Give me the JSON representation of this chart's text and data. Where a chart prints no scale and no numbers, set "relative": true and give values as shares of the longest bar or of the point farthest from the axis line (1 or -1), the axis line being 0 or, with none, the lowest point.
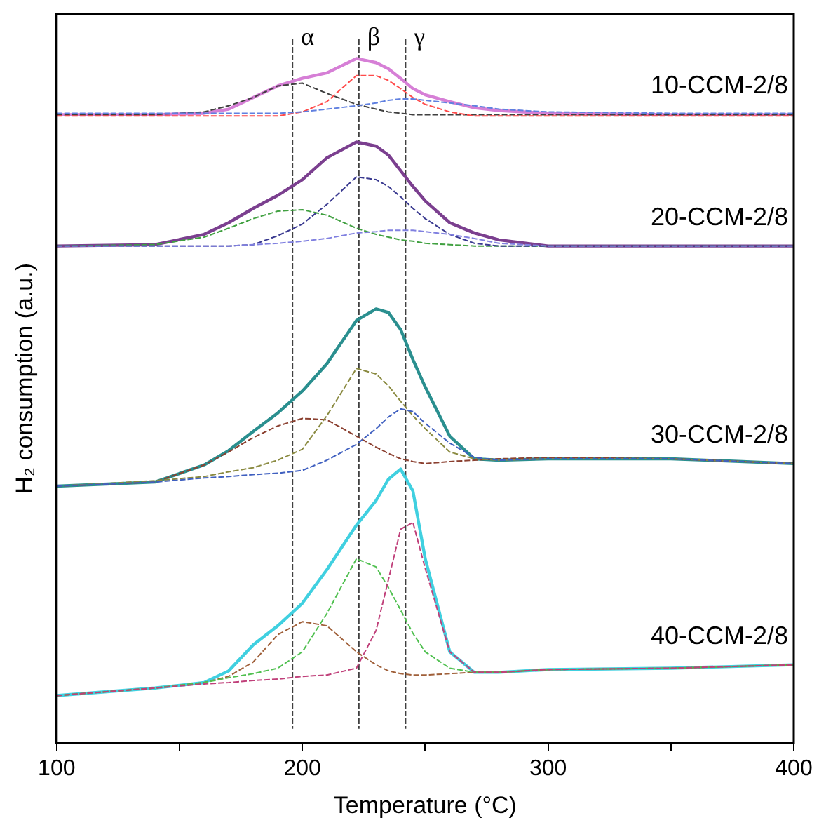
{
  "chart_data": {
    "type": "line",
    "relative": true,
    "xlabel": "Temperature (°C)",
    "ylabel": "H₂ consumption (a.u.)",
    "xlim": [
      100,
      400
    ],
    "xticks": [
      100,
      {
        "value": 150,
        "label": null
      },
      200,
      {
        "value": 250,
        "label": null
      },
      300,
      {
        "value": 350,
        "label": null
      },
      400
    ],
    "marker": "none",
    "x": [
      100,
      140,
      160,
      170,
      180,
      190,
      200,
      210,
      222,
      230,
      235,
      240,
      245,
      250,
      260,
      270,
      280,
      300,
      350,
      400
    ],
    "series": [
      {
        "name": "10-CCM-2/8",
        "color": "#d67fd6",
        "line_style": "solid",
        "values": [
          0.918,
          0.918,
          0.92,
          0.926,
          0.943,
          0.96,
          0.971,
          0.979,
          1.0,
          0.994,
          0.985,
          0.971,
          0.956,
          0.947,
          0.937,
          0.928,
          0.924,
          0.92,
          0.918,
          0.918
        ]
      },
      {
        "color": "#404040",
        "line_style": "dashed",
        "values": [
          0.918,
          0.918,
          0.922,
          0.931,
          0.943,
          0.96,
          0.964,
          0.949,
          0.933,
          0.926,
          0.922,
          0.92,
          0.918,
          0.918,
          0.918,
          0.918,
          0.918,
          0.918,
          0.918,
          0.918
        ]
      },
      {
        "color": "#ff4a4a",
        "line_style": "dashed",
        "values": [
          0.916,
          0.916,
          0.916,
          0.916,
          0.916,
          0.916,
          0.922,
          0.937,
          0.975,
          0.975,
          0.968,
          0.956,
          0.943,
          0.933,
          0.922,
          0.916,
          0.916,
          0.916,
          0.916,
          0.916
        ]
      },
      {
        "color": "#6080e0",
        "line_style": "dashed",
        "values": [
          0.92,
          0.92,
          0.92,
          0.92,
          0.92,
          0.92,
          0.922,
          0.926,
          0.931,
          0.935,
          0.939,
          0.941,
          0.941,
          0.939,
          0.935,
          0.931,
          0.926,
          0.922,
          0.92,
          0.92
        ]
      },
      {
        "name": "20-CCM-2/8",
        "color": "#7b3f8f",
        "line_style": "solid",
        "values": [
          0.726,
          0.728,
          0.743,
          0.76,
          0.781,
          0.8,
          0.823,
          0.855,
          0.878,
          0.872,
          0.859,
          0.836,
          0.813,
          0.792,
          0.76,
          0.745,
          0.735,
          0.726,
          0.726,
          0.726
        ]
      },
      {
        "color": "#40a040",
        "line_style": "dashed",
        "values": [
          0.726,
          0.728,
          0.739,
          0.752,
          0.766,
          0.777,
          0.779,
          0.771,
          0.752,
          0.743,
          0.739,
          0.735,
          0.733,
          0.73,
          0.728,
          0.726,
          0.726,
          0.726,
          0.726,
          0.726
        ]
      },
      {
        "color": "#3a3a90",
        "line_style": "dashed",
        "values": [
          0.726,
          0.726,
          0.726,
          0.726,
          0.728,
          0.741,
          0.758,
          0.787,
          0.827,
          0.823,
          0.813,
          0.798,
          0.781,
          0.766,
          0.743,
          0.73,
          0.726,
          0.726,
          0.726,
          0.726
        ]
      },
      {
        "color": "#8080e0",
        "line_style": "dashed",
        "values": [
          0.726,
          0.726,
          0.726,
          0.726,
          0.728,
          0.73,
          0.733,
          0.737,
          0.745,
          0.747,
          0.749,
          0.749,
          0.749,
          0.747,
          0.743,
          0.737,
          0.73,
          0.726,
          0.726,
          0.726
        ]
      },
      {
        "name": "30-CCM-2/8",
        "color": "#2a8f8f",
        "line_style": "solid",
        "values": [
          0.375,
          0.381,
          0.406,
          0.427,
          0.455,
          0.482,
          0.514,
          0.554,
          0.617,
          0.634,
          0.629,
          0.604,
          0.56,
          0.52,
          0.448,
          0.415,
          0.413,
          0.415,
          0.415,
          0.408
        ]
      },
      {
        "color": "#8b4030",
        "line_style": "dashed",
        "values": [
          0.375,
          0.381,
          0.406,
          0.425,
          0.446,
          0.463,
          0.474,
          0.472,
          0.448,
          0.432,
          0.423,
          0.415,
          0.411,
          0.408,
          0.411,
          0.413,
          0.415,
          0.417,
          0.415,
          0.408
        ]
      },
      {
        "color": "#8a8a40",
        "line_style": "dashed",
        "values": [
          0.375,
          0.383,
          0.389,
          0.396,
          0.402,
          0.413,
          0.429,
          0.478,
          0.547,
          0.539,
          0.522,
          0.499,
          0.478,
          0.459,
          0.425,
          0.415,
          0.413,
          0.415,
          0.415,
          0.408
        ]
      },
      {
        "color": "#4060c0",
        "line_style": "dashed",
        "values": [
          0.375,
          0.381,
          0.387,
          0.389,
          0.392,
          0.394,
          0.398,
          0.413,
          0.436,
          0.459,
          0.476,
          0.488,
          0.484,
          0.467,
          0.438,
          0.417,
          0.413,
          0.415,
          0.415,
          0.408
        ]
      },
      {
        "name": "40-CCM-2/8",
        "color": "#40d0e0",
        "line_style": "solid",
        "values": [
          0.069,
          0.08,
          0.088,
          0.105,
          0.143,
          0.171,
          0.204,
          0.253,
          0.318,
          0.354,
          0.385,
          0.4,
          0.368,
          0.269,
          0.133,
          0.103,
          0.103,
          0.107,
          0.109,
          0.114
        ]
      },
      {
        "color": "#a0603a",
        "line_style": "dashed",
        "values": [
          0.069,
          0.08,
          0.088,
          0.097,
          0.118,
          0.158,
          0.177,
          0.171,
          0.133,
          0.114,
          0.105,
          0.101,
          0.099,
          0.099,
          0.101,
          0.103,
          0.103,
          0.107,
          0.109,
          0.114
        ]
      },
      {
        "color": "#50c050",
        "line_style": "dashed",
        "values": [
          0.069,
          0.08,
          0.088,
          0.095,
          0.101,
          0.109,
          0.133,
          0.189,
          0.269,
          0.257,
          0.227,
          0.194,
          0.16,
          0.133,
          0.109,
          0.103,
          0.103,
          0.107,
          0.109,
          0.114
        ]
      },
      {
        "color": "#c0407a",
        "line_style": "dashed",
        "values": [
          0.069,
          0.08,
          0.086,
          0.088,
          0.091,
          0.093,
          0.097,
          0.099,
          0.109,
          0.164,
          0.238,
          0.312,
          0.322,
          0.255,
          0.133,
          0.103,
          0.103,
          0.107,
          0.109,
          0.114
        ]
      }
    ],
    "ref_lines": [
      {
        "axis": "x",
        "value": 196,
        "label": "α",
        "color": "#404040",
        "line_style": "dashed"
      },
      {
        "axis": "x",
        "value": 223,
        "label": "β",
        "color": "#404040",
        "line_style": "dashed"
      },
      {
        "axis": "x",
        "value": 242,
        "label": "γ",
        "color": "#404040",
        "line_style": "dashed"
      }
    ]
  }
}
